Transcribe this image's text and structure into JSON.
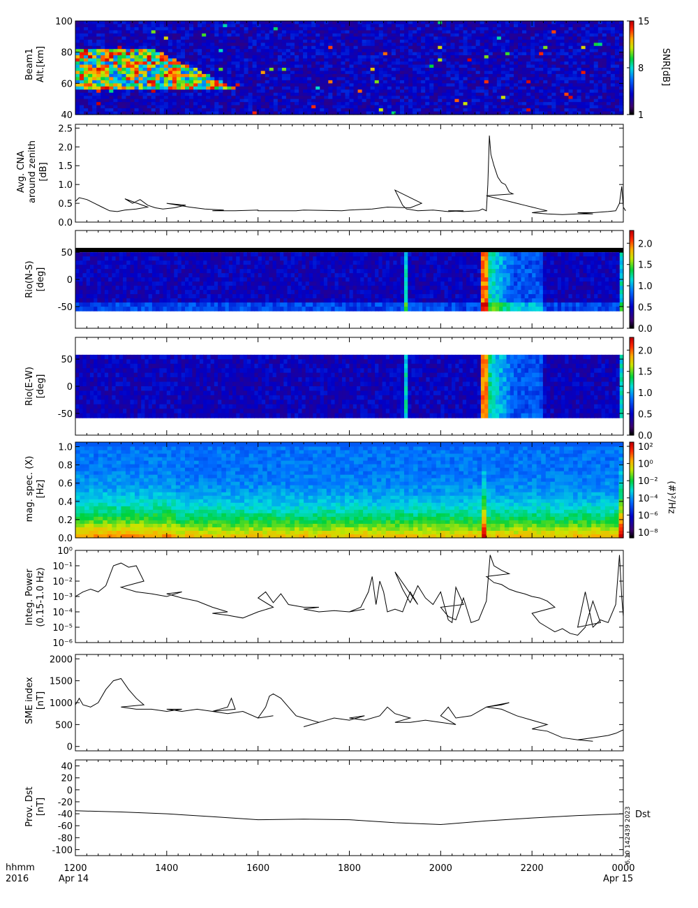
{
  "footer": {
    "time_label": "hhmm",
    "year": "2016",
    "start_date": "Apr 14",
    "end_date": "Apr 15",
    "stamp": "6.10 142439 2023",
    "stamp_mark": "a"
  },
  "chart_data": [
    {
      "type": "heatmap",
      "ylabel_1": "Beam1",
      "ylabel_2": "Alt.[km]",
      "ylim": [
        40,
        100
      ],
      "yticks": [
        "40",
        "60",
        "80",
        "100"
      ],
      "colorbar_label": "SNR[dB]",
      "colorbar_ticks": [
        "1",
        "8",
        "15"
      ],
      "colorbar_range": [
        1,
        15
      ]
    },
    {
      "type": "line",
      "ylabel_1": "Avg. CNA",
      "ylabel_2": "around zenith",
      "ylabel_3": "[dB]",
      "ylim": [
        0,
        2.6
      ],
      "yticks": [
        "0.0",
        "0.5",
        "1.0",
        "1.5",
        "2.0",
        "2.5"
      ],
      "x": [
        1200,
        1205,
        1215,
        1225,
        1235,
        1245,
        1255,
        1265,
        1280,
        1295,
        1305,
        1315,
        1325,
        1335,
        1345,
        1355,
        1370,
        1385,
        1400,
        1415,
        1430,
        1450,
        1475,
        1500,
        1530,
        1560,
        1600,
        1650,
        1700,
        1750,
        1800,
        1830,
        1850,
        1880,
        1895,
        1900,
        1905,
        1910,
        1915,
        1930,
        1950,
        1970,
        1990,
        2010,
        2030,
        2050,
        2055,
        2060,
        2062,
        2064,
        2066,
        2070,
        2075,
        2080,
        2085,
        2090,
        2095,
        2100,
        2110,
        2120,
        2130,
        2140,
        2150,
        2160,
        2170,
        2180,
        2200,
        2220,
        2240,
        2260,
        2280,
        2300,
        2320,
        2340,
        2350,
        2355,
        2358,
        2360,
        2363
      ],
      "values": [
        0.55,
        0.65,
        0.6,
        0.5,
        0.4,
        0.3,
        0.28,
        0.32,
        0.35,
        0.4,
        0.62,
        0.5,
        0.6,
        0.45,
        0.38,
        0.35,
        0.38,
        0.45,
        0.5,
        0.45,
        0.4,
        0.35,
        0.32,
        0.3,
        0.3,
        0.32,
        0.3,
        0.3,
        0.32,
        0.3,
        0.32,
        0.35,
        0.4,
        0.38,
        0.5,
        0.85,
        0.65,
        0.45,
        0.35,
        0.3,
        0.32,
        0.28,
        0.3,
        0.3,
        0.28,
        0.3,
        0.35,
        0.3,
        1.0,
        2.3,
        1.8,
        1.5,
        1.2,
        1.05,
        1.0,
        0.8,
        0.75,
        0.7,
        0.65,
        0.6,
        0.55,
        0.5,
        0.45,
        0.4,
        0.35,
        0.3,
        0.25,
        0.22,
        0.2,
        0.22,
        0.22,
        0.25,
        0.25,
        0.28,
        0.3,
        0.5,
        0.95,
        0.4,
        0.3
      ]
    },
    {
      "type": "heatmap",
      "ylabel_1": "Rio(N-S)",
      "ylabel_2": "[deg]",
      "ylim": [
        -90,
        90
      ],
      "yticks": [
        "-50",
        "0",
        "50"
      ],
      "colorbar_ticks": [
        "0.0",
        "0.5",
        "1.0",
        "1.5",
        "2.0"
      ],
      "colorbar_range": [
        0,
        2.3
      ]
    },
    {
      "type": "heatmap",
      "ylabel_1": "Rio(E-W)",
      "ylabel_2": "[deg]",
      "ylim": [
        -90,
        90
      ],
      "yticks": [
        "-50",
        "0",
        "50"
      ],
      "colorbar_ticks": [
        "0.0",
        "0.5",
        "1.0",
        "1.5",
        "2.0"
      ],
      "colorbar_range": [
        0,
        2.3
      ]
    },
    {
      "type": "heatmap",
      "ylabel_1": "mag. spec. (X)",
      "ylabel_2": "[Hz]",
      "ylim": [
        0,
        1.05
      ],
      "yticks": [
        "0.0",
        "0.2",
        "0.4",
        "0.6",
        "0.8",
        "1.0"
      ],
      "colorbar_label": "(#)²/Hz",
      "colorbar_ticks": [
        "10⁻⁸",
        "10⁻⁶",
        "10⁻⁴",
        "10⁻²",
        "10⁰",
        "10²"
      ]
    },
    {
      "type": "line",
      "ylabel_1": "Integ. Power",
      "ylabel_2": "(0.15-1.0 Hz)",
      "yscale": "log",
      "ylim": [
        1e-06,
        1
      ],
      "yticks": [
        "10⁻⁶",
        "10⁻⁵",
        "10⁻⁴",
        "10⁻³",
        "10⁻²",
        "10⁻¹",
        "10⁰"
      ],
      "x": [
        1200,
        1210,
        1220,
        1230,
        1240,
        1250,
        1260,
        1270,
        1280,
        1290,
        1300,
        1320,
        1340,
        1360,
        1380,
        1400,
        1420,
        1440,
        1460,
        1480,
        1500,
        1520,
        1540,
        1560,
        1580,
        1600,
        1610,
        1620,
        1630,
        1640,
        1660,
        1680,
        1700,
        1720,
        1740,
        1760,
        1780,
        1800,
        1815,
        1825,
        1830,
        1835,
        1840,
        1845,
        1850,
        1860,
        1870,
        1880,
        1890,
        1900,
        1910,
        1920,
        1930,
        1940,
        1950,
        1960,
        1970,
        1975,
        1980,
        1990,
        2000,
        2010,
        2020,
        2030,
        2040,
        2050,
        2060,
        2065,
        2070,
        2080,
        2090,
        2100,
        2110,
        2120,
        2130,
        2140,
        2150,
        2160,
        2170,
        2180,
        2190,
        2200,
        2210,
        2220,
        2230,
        2240,
        2250,
        2260,
        2270,
        2280,
        2290,
        2300,
        2310,
        2320,
        2330,
        2340,
        2350,
        2355,
        2358,
        2360
      ],
      "values": [
        0.001,
        0.002,
        0.003,
        0.002,
        0.005,
        0.1,
        0.15,
        0.08,
        0.1,
        0.01,
        0.004,
        0.002,
        0.0015,
        0.001,
        0.002,
        0.0015,
        0.0008,
        0.0005,
        0.0002,
        0.0001,
        8e-05,
        6e-05,
        4e-05,
        0.0001,
        0.0002,
        0.0008,
        0.002,
        0.0004,
        0.0015,
        0.0003,
        0.0002,
        0.0002,
        0.00015,
        0.0001,
        0.00012,
        0.0001,
        0.00015,
        0.0001,
        0.0002,
        0.002,
        0.02,
        0.0003,
        0.01,
        0.002,
        0.0001,
        0.00015,
        0.0001,
        0.002,
        0.0003,
        0.04,
        0.003,
        0.0004,
        0.005,
        0.0008,
        0.0003,
        0.002,
        3e-05,
        2e-05,
        0.004,
        0.0003,
        0.0002,
        5e-05,
        3e-05,
        0.0008,
        2e-05,
        3e-05,
        0.0005,
        0.5,
        0.1,
        0.05,
        0.03,
        0.02,
        0.008,
        0.006,
        0.003,
        0.002,
        0.0015,
        0.001,
        0.0008,
        0.0005,
        0.0002,
        8e-05,
        2e-05,
        1e-05,
        5e-06,
        8e-06,
        4e-06,
        3e-06,
        1e-05,
        0.0005,
        2e-05,
        1e-05,
        0.002,
        1e-05,
        3e-05,
        2e-05,
        0.0003,
        0.5,
        0.0008,
        5e-05
      ]
    },
    {
      "type": "line",
      "ylabel_1": "SME index",
      "ylabel_2": "[nT]",
      "ylim": [
        -100,
        2100
      ],
      "yticks": [
        "0",
        "500",
        "1000",
        "1500",
        "2000"
      ],
      "x": [
        1200,
        1205,
        1210,
        1220,
        1230,
        1240,
        1250,
        1260,
        1270,
        1280,
        1290,
        1300,
        1320,
        1340,
        1360,
        1380,
        1400,
        1420,
        1440,
        1460,
        1480,
        1485,
        1490,
        1500,
        1520,
        1540,
        1560,
        1580,
        1600,
        1610,
        1615,
        1620,
        1630,
        1640,
        1650,
        1660,
        1680,
        1700,
        1720,
        1740,
        1760,
        1780,
        1800,
        1820,
        1840,
        1850,
        1860,
        1880,
        1900,
        1920,
        1940,
        1960,
        1980,
        2000,
        2010,
        2020,
        2040,
        2060,
        2080,
        2090,
        2100,
        2120,
        2140,
        2160,
        2180,
        2200,
        2220,
        2240,
        2260,
        2280,
        2300,
        2320,
        2340,
        2350,
        2360
      ],
      "values": [
        950,
        1100,
        950,
        900,
        1000,
        1300,
        1500,
        1550,
        1300,
        1100,
        950,
        900,
        850,
        850,
        800,
        850,
        850,
        800,
        850,
        800,
        900,
        1100,
        850,
        800,
        750,
        800,
        650,
        700,
        650,
        900,
        1150,
        1200,
        1100,
        900,
        700,
        650,
        550,
        450,
        550,
        650,
        600,
        700,
        650,
        600,
        700,
        900,
        750,
        650,
        550,
        550,
        600,
        550,
        500,
        700,
        900,
        650,
        700,
        900,
        950,
        1000,
        900,
        850,
        700,
        600,
        500,
        400,
        350,
        200,
        150,
        120,
        150,
        200,
        250,
        300,
        380
      ]
    },
    {
      "type": "line",
      "ylabel_1": "Prov. Dst",
      "ylabel_2": "[nT]",
      "ylim": [
        -110,
        50
      ],
      "yticks": [
        "-100",
        "-80",
        "-60",
        "-40",
        "-20",
        "0",
        "20",
        "40"
      ],
      "series_label": "Dst",
      "x": [
        1200,
        1300,
        1400,
        1500,
        1600,
        1700,
        1800,
        1900,
        2000,
        2100,
        2200,
        2300,
        2400
      ],
      "values": [
        -35,
        -37,
        -40,
        -45,
        -50,
        -49,
        -50,
        -55,
        -58,
        -52,
        -47,
        -43,
        -40
      ],
      "xticks": [
        "1200",
        "1400",
        "1600",
        "1800",
        "2000",
        "2200",
        "0000"
      ],
      "xlim": [
        1200,
        2400
      ]
    }
  ]
}
